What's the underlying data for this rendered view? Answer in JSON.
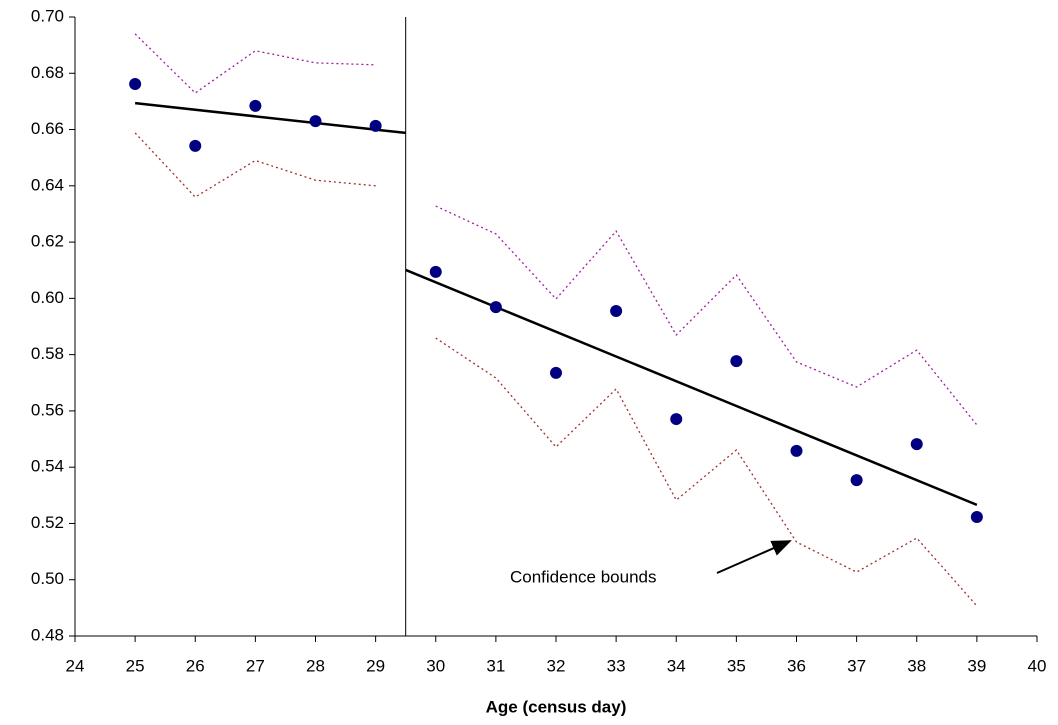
{
  "chart_data": {
    "type": "scatter",
    "xlabel": "Age (census day)",
    "xlim": [
      24,
      40
    ],
    "xticks": [
      24,
      25,
      26,
      27,
      28,
      29,
      30,
      31,
      32,
      33,
      34,
      35,
      36,
      37,
      38,
      39,
      40
    ],
    "ylim": [
      0.48,
      0.7
    ],
    "yticks": [
      0.48,
      {
        "value": 0.5,
        "label": "0.50"
      },
      0.52,
      0.54,
      0.56,
      0.58,
      {
        "value": 0.6,
        "label": "0.60"
      },
      0.62,
      0.64,
      0.66,
      0.68,
      {
        "value": 0.7,
        "label": "0.70"
      }
    ],
    "grid": false,
    "cutoff_x": 29.5,
    "annotation": {
      "text": "Confidence bounds"
    },
    "series": [
      {
        "style": "dotted",
        "color": "#a020a0",
        "x": [
          25,
          26,
          27,
          28,
          29
        ],
        "values": [
          0.694,
          0.673,
          0.688,
          0.6837,
          0.683
        ]
      },
      {
        "style": "dotted",
        "color": "#a03030",
        "x": [
          25,
          26,
          27,
          28,
          29
        ],
        "values": [
          0.6588,
          0.636,
          0.649,
          0.642,
          0.64
        ]
      },
      {
        "style": "dotted",
        "color": "#a020a0",
        "x": [
          30,
          31,
          32,
          33,
          34,
          35,
          36,
          37,
          38,
          39
        ],
        "values": [
          0.6328,
          0.6229,
          0.5998,
          0.6239,
          0.587,
          0.6083,
          0.5774,
          0.5685,
          0.5816,
          0.555
        ]
      },
      {
        "style": "dotted",
        "color": "#a03030",
        "x": [
          30,
          31,
          32,
          33,
          34,
          35,
          36,
          37,
          38,
          39
        ],
        "values": [
          0.5859,
          0.5717,
          0.5472,
          0.5678,
          0.5283,
          0.5461,
          0.5134,
          0.5027,
          0.5148,
          0.4907
        ]
      },
      {
        "style": "line",
        "color": "#000000",
        "x": [
          25,
          29.5
        ],
        "values": [
          0.6694,
          0.6588
        ]
      },
      {
        "style": "line",
        "color": "#000000",
        "x": [
          29.5,
          39
        ],
        "values": [
          0.6101,
          0.5266
        ]
      },
      {
        "style": "markers",
        "color": "#000080",
        "x": [
          25,
          26,
          27,
          28,
          29,
          30,
          31,
          32,
          33,
          34,
          35,
          36,
          37,
          38,
          39
        ],
        "values": [
          0.6762,
          0.6542,
          0.6684,
          0.663,
          0.6613,
          0.6094,
          0.5969,
          0.5735,
          0.5955,
          0.5571,
          0.5777,
          0.5458,
          0.5354,
          0.5482,
          0.5223
        ]
      }
    ]
  }
}
